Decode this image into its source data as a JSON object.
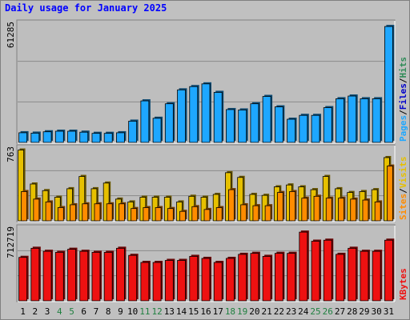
{
  "title": "Daily usage for January 2025",
  "colors": {
    "background": "#c0c0c0",
    "panel": "#bebebe",
    "pages": "#1ea7ff",
    "files": "#0000cc",
    "hits": "#2e8b57",
    "sites": "#ff8c00",
    "visits": "#e6c000",
    "kbytes": "#ee1111",
    "weekend_label": "#208040",
    "weekday_label": "#000000"
  },
  "chart_data": [
    {
      "type": "bar",
      "panel": "top",
      "y_max_label": "61285",
      "ylim": [
        0,
        61285
      ],
      "legend": [
        {
          "name": "Pages",
          "color": "#1ea7ff"
        },
        {
          "name": "/",
          "color": "#000000"
        },
        {
          "name": "Files",
          "color": "#0000cc"
        },
        {
          "name": "/",
          "color": "#000000"
        },
        {
          "name": "Hits",
          "color": "#2e8b57"
        }
      ],
      "categories": [
        "1",
        "2",
        "3",
        "4",
        "5",
        "6",
        "7",
        "8",
        "9",
        "10",
        "11",
        "12",
        "13",
        "14",
        "15",
        "16",
        "17",
        "18",
        "19",
        "20",
        "21",
        "22",
        "23",
        "24",
        "25",
        "26",
        "27",
        "28",
        "29",
        "30",
        "31"
      ],
      "weekend_days": [
        "4",
        "5",
        "11",
        "12",
        "18",
        "19",
        "25",
        "26"
      ],
      "series": [
        {
          "name": "Pages",
          "values": [
            5000,
            4800,
            5500,
            5800,
            5800,
            5300,
            4700,
            4700,
            5000,
            11000,
            21500,
            12500,
            20000,
            27200,
            28900,
            30300,
            25900,
            17000,
            16800,
            20000,
            23800,
            18400,
            12000,
            14000,
            14000,
            18000,
            22600,
            24000,
            22600,
            22600,
            60000
          ]
        }
      ]
    },
    {
      "type": "bar",
      "panel": "middle",
      "y_max_label": "763",
      "ylim": [
        0,
        763
      ],
      "legend": [
        {
          "name": "Sites",
          "color": "#ff8c00"
        },
        {
          "name": "/",
          "color": "#000000"
        },
        {
          "name": "Visits",
          "color": "#e6c000"
        }
      ],
      "categories": [
        "1",
        "2",
        "3",
        "4",
        "5",
        "6",
        "7",
        "8",
        "9",
        "10",
        "11",
        "12",
        "13",
        "14",
        "15",
        "16",
        "17",
        "18",
        "19",
        "20",
        "21",
        "22",
        "23",
        "24",
        "25",
        "26",
        "27",
        "28",
        "29",
        "30",
        "31"
      ],
      "series": [
        {
          "name": "Visits",
          "values": [
            750,
            390,
            320,
            250,
            340,
            470,
            340,
            400,
            230,
            200,
            250,
            250,
            250,
            200,
            260,
            250,
            280,
            510,
            460,
            280,
            270,
            360,
            380,
            360,
            330,
            470,
            340,
            300,
            310,
            330,
            670
          ]
        },
        {
          "name": "Sites",
          "values": [
            310,
            230,
            200,
            140,
            170,
            180,
            180,
            180,
            180,
            130,
            140,
            140,
            130,
            100,
            150,
            120,
            140,
            330,
            170,
            160,
            160,
            300,
            310,
            240,
            260,
            240,
            240,
            230,
            220,
            200,
            580
          ]
        }
      ]
    },
    {
      "type": "bar",
      "panel": "bottom",
      "y_max_label": "712719",
      "ylim": [
        0,
        712719
      ],
      "legend": [
        {
          "name": "KBytes",
          "color": "#ee1111"
        }
      ],
      "categories": [
        "1",
        "2",
        "3",
        "4",
        "5",
        "6",
        "7",
        "8",
        "9",
        "10",
        "11",
        "12",
        "13",
        "14",
        "15",
        "16",
        "17",
        "18",
        "19",
        "20",
        "21",
        "22",
        "23",
        "24",
        "25",
        "26",
        "27",
        "28",
        "29",
        "30",
        "31"
      ],
      "series": [
        {
          "name": "KBytes",
          "values": [
            430000,
            520000,
            490000,
            480000,
            510000,
            490000,
            480000,
            480000,
            520000,
            450000,
            380000,
            380000,
            400000,
            400000,
            440000,
            420000,
            380000,
            420000,
            460000,
            470000,
            440000,
            470000,
            470000,
            680000,
            590000,
            600000,
            460000,
            520000,
            490000,
            490000,
            600000
          ]
        }
      ]
    }
  ]
}
